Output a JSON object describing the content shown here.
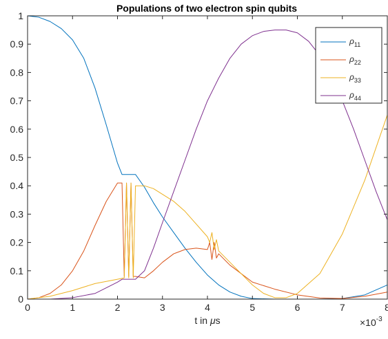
{
  "colors": {
    "rho11": "#0072BD",
    "rho22": "#D95319",
    "rho33": "#EDB120",
    "rho44": "#7E2F8E",
    "axes": "#262626",
    "background": "#ffffff"
  },
  "chart_data": {
    "type": "line",
    "title": "Populations of two electron spin qubits",
    "xlabel": "t in μs",
    "xlabel_prefix": "t in ",
    "xlabel_mu": "μ",
    "xlabel_suffix": "s",
    "ylabel": "",
    "xlim": [
      0,
      8
    ],
    "ylim": [
      0,
      1
    ],
    "x_multiplier": {
      "base": "×10",
      "exponent": "-3"
    },
    "xticks": [
      0,
      1,
      2,
      3,
      4,
      5,
      6,
      7,
      8
    ],
    "xtick_labels": [
      "0",
      "1",
      "2",
      "3",
      "4",
      "5",
      "6",
      "7",
      "8"
    ],
    "yticks": [
      0,
      0.1,
      0.2,
      0.3,
      0.4,
      0.5,
      0.6,
      0.7,
      0.8,
      0.9,
      1
    ],
    "ytick_labels": [
      "0",
      "0.1",
      "0.2",
      "0.3",
      "0.4",
      "0.5",
      "0.6",
      "0.7",
      "0.8",
      "0.9",
      "1"
    ],
    "grid": false,
    "legend_position": "top-right",
    "legend": [
      {
        "symbol": "ρ",
        "sub": "11"
      },
      {
        "symbol": "ρ",
        "sub": "22"
      },
      {
        "symbol": "ρ",
        "sub": "33"
      },
      {
        "symbol": "ρ",
        "sub": "44"
      }
    ],
    "series": [
      {
        "legend_name": "ρ11",
        "color": "#0072BD",
        "points": [
          [
            0,
            1.0
          ],
          [
            0.25,
            0.995
          ],
          [
            0.5,
            0.98
          ],
          [
            0.75,
            0.955
          ],
          [
            1.0,
            0.915
          ],
          [
            1.25,
            0.85
          ],
          [
            1.5,
            0.745
          ],
          [
            1.75,
            0.615
          ],
          [
            2.0,
            0.48
          ],
          [
            2.1,
            0.44
          ],
          [
            2.4,
            0.44
          ],
          [
            2.6,
            0.395
          ],
          [
            2.8,
            0.34
          ],
          [
            3.0,
            0.29
          ],
          [
            3.25,
            0.235
          ],
          [
            3.5,
            0.18
          ],
          [
            3.75,
            0.13
          ],
          [
            4.0,
            0.085
          ],
          [
            4.25,
            0.05
          ],
          [
            4.5,
            0.025
          ],
          [
            4.75,
            0.01
          ],
          [
            5.0,
            0.002
          ],
          [
            5.5,
            0.0
          ],
          [
            6.0,
            0.0
          ],
          [
            6.5,
            0.0
          ],
          [
            7.0,
            0.002
          ],
          [
            7.5,
            0.015
          ],
          [
            8.0,
            0.05
          ]
        ]
      },
      {
        "legend_name": "ρ22",
        "color": "#D95319",
        "points": [
          [
            0,
            0.0
          ],
          [
            0.25,
            0.005
          ],
          [
            0.5,
            0.02
          ],
          [
            0.75,
            0.05
          ],
          [
            1.0,
            0.1
          ],
          [
            1.25,
            0.17
          ],
          [
            1.5,
            0.26
          ],
          [
            1.75,
            0.345
          ],
          [
            2.0,
            0.41
          ],
          [
            2.1,
            0.41
          ],
          [
            2.15,
            0.08
          ],
          [
            2.2,
            0.41
          ],
          [
            2.25,
            0.08
          ],
          [
            2.3,
            0.41
          ],
          [
            2.35,
            0.08
          ],
          [
            2.4,
            0.08
          ],
          [
            2.6,
            0.075
          ],
          [
            2.8,
            0.1
          ],
          [
            3.0,
            0.13
          ],
          [
            3.25,
            0.16
          ],
          [
            3.5,
            0.175
          ],
          [
            3.75,
            0.18
          ],
          [
            4.0,
            0.175
          ],
          [
            4.05,
            0.2
          ],
          [
            4.1,
            0.14
          ],
          [
            4.15,
            0.2
          ],
          [
            4.2,
            0.145
          ],
          [
            4.25,
            0.16
          ],
          [
            4.5,
            0.12
          ],
          [
            4.75,
            0.09
          ],
          [
            5.0,
            0.06
          ],
          [
            5.5,
            0.035
          ],
          [
            6.0,
            0.015
          ],
          [
            6.5,
            0.004
          ],
          [
            7.0,
            0.002
          ],
          [
            7.5,
            0.01
          ],
          [
            8.0,
            0.025
          ]
        ]
      },
      {
        "legend_name": "ρ33",
        "color": "#EDB120",
        "points": [
          [
            0,
            0.0
          ],
          [
            0.5,
            0.01
          ],
          [
            1.0,
            0.03
          ],
          [
            1.5,
            0.055
          ],
          [
            2.0,
            0.07
          ],
          [
            2.15,
            0.075
          ],
          [
            2.2,
            0.41
          ],
          [
            2.25,
            0.075
          ],
          [
            2.3,
            0.41
          ],
          [
            2.35,
            0.075
          ],
          [
            2.4,
            0.4
          ],
          [
            2.6,
            0.4
          ],
          [
            2.8,
            0.39
          ],
          [
            3.0,
            0.37
          ],
          [
            3.25,
            0.345
          ],
          [
            3.5,
            0.31
          ],
          [
            3.75,
            0.265
          ],
          [
            4.0,
            0.22
          ],
          [
            4.05,
            0.2
          ],
          [
            4.1,
            0.235
          ],
          [
            4.15,
            0.175
          ],
          [
            4.2,
            0.21
          ],
          [
            4.25,
            0.17
          ],
          [
            4.5,
            0.13
          ],
          [
            4.75,
            0.09
          ],
          [
            5.0,
            0.05
          ],
          [
            5.25,
            0.02
          ],
          [
            5.5,
            0.005
          ],
          [
            5.75,
            0.005
          ],
          [
            6.0,
            0.02
          ],
          [
            6.5,
            0.09
          ],
          [
            7.0,
            0.23
          ],
          [
            7.5,
            0.42
          ],
          [
            8.0,
            0.65
          ]
        ]
      },
      {
        "legend_name": "ρ44",
        "color": "#7E2F8E",
        "points": [
          [
            0,
            0.0
          ],
          [
            0.5,
            0.0
          ],
          [
            1.0,
            0.005
          ],
          [
            1.5,
            0.02
          ],
          [
            2.0,
            0.06
          ],
          [
            2.1,
            0.07
          ],
          [
            2.4,
            0.07
          ],
          [
            2.6,
            0.1
          ],
          [
            2.8,
            0.18
          ],
          [
            3.0,
            0.27
          ],
          [
            3.25,
            0.38
          ],
          [
            3.5,
            0.49
          ],
          [
            3.75,
            0.6
          ],
          [
            4.0,
            0.7
          ],
          [
            4.25,
            0.78
          ],
          [
            4.5,
            0.85
          ],
          [
            4.75,
            0.9
          ],
          [
            5.0,
            0.93
          ],
          [
            5.25,
            0.945
          ],
          [
            5.5,
            0.95
          ],
          [
            5.75,
            0.95
          ],
          [
            6.0,
            0.94
          ],
          [
            6.25,
            0.91
          ],
          [
            6.5,
            0.86
          ],
          [
            6.75,
            0.79
          ],
          [
            7.0,
            0.7
          ],
          [
            7.25,
            0.6
          ],
          [
            7.5,
            0.49
          ],
          [
            7.75,
            0.38
          ],
          [
            8.0,
            0.28
          ]
        ]
      }
    ]
  }
}
